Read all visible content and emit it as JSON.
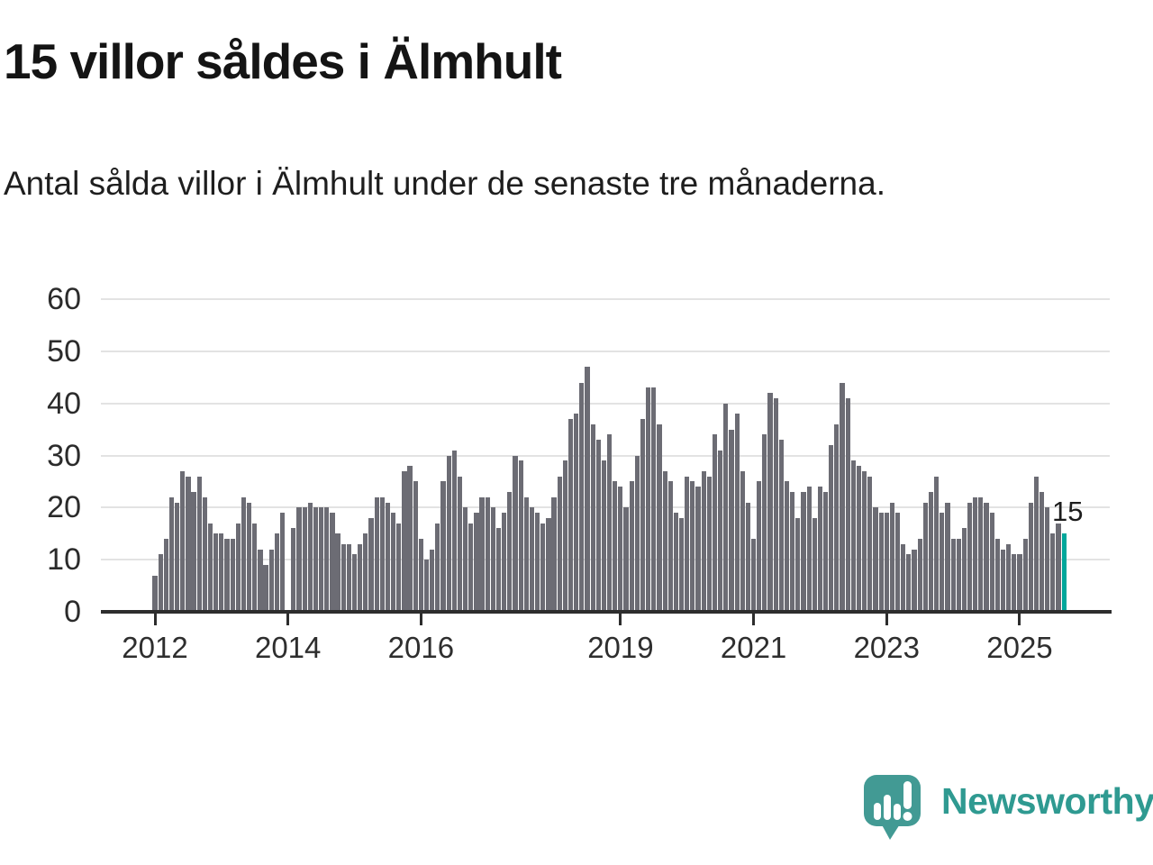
{
  "header": {
    "title": "15 villor såldes i Älmhult",
    "subtitle": "Antal sålda villor i Älmhult under de senaste tre månaderna."
  },
  "chart_data": {
    "type": "bar",
    "title": "15 villor såldes i Älmhult",
    "subtitle": "Antal sålda villor i Älmhult under de senaste tre månaderna.",
    "x_start": "2012-01",
    "x_frequency": "monthly",
    "values": [
      7,
      11,
      14,
      22,
      21,
      27,
      26,
      23,
      26,
      22,
      17,
      15,
      15,
      14,
      14,
      17,
      22,
      21,
      17,
      12,
      9,
      12,
      15,
      19,
      0,
      16,
      20,
      20,
      21,
      20,
      20,
      20,
      19,
      15,
      13,
      13,
      11,
      13,
      15,
      18,
      22,
      22,
      21,
      19,
      17,
      27,
      28,
      25,
      14,
      10,
      12,
      17,
      25,
      30,
      31,
      26,
      20,
      17,
      19,
      22,
      22,
      20,
      16,
      19,
      23,
      30,
      29,
      22,
      20,
      19,
      17,
      18,
      22,
      26,
      29,
      37,
      38,
      44,
      47,
      36,
      33,
      29,
      34,
      25,
      24,
      20,
      25,
      30,
      37,
      43,
      43,
      36,
      27,
      25,
      19,
      18,
      26,
      25,
      24,
      27,
      26,
      34,
      31,
      40,
      35,
      38,
      27,
      21,
      14,
      25,
      34,
      42,
      41,
      33,
      25,
      23,
      18,
      23,
      24,
      18,
      24,
      23,
      32,
      36,
      44,
      41,
      29,
      28,
      27,
      26,
      20,
      19,
      19,
      21,
      19,
      13,
      11,
      12,
      14,
      21,
      23,
      26,
      19,
      21,
      14,
      14,
      16,
      21,
      22,
      22,
      21,
      19,
      14,
      12,
      13,
      11,
      11,
      14,
      21,
      26,
      23,
      20,
      15,
      17,
      15
    ],
    "ylim": [
      0,
      60
    ],
    "yticks": [
      0,
      10,
      20,
      30,
      40,
      50,
      60
    ],
    "xticks": [
      {
        "label": "2012",
        "month": 0
      },
      {
        "label": "2014",
        "month": 24
      },
      {
        "label": "2016",
        "month": 48
      },
      {
        "label": "2019",
        "month": 84
      },
      {
        "label": "2021",
        "month": 108
      },
      {
        "label": "2023",
        "month": 132
      },
      {
        "label": "2025",
        "month": 156
      }
    ],
    "grid": "horizontal",
    "legend": "none",
    "bar_color": "#6c6c74",
    "highlight": {
      "month_index": 164,
      "value": 15,
      "label": "15",
      "color": "#00a79b"
    }
  },
  "footer": {
    "brand": "Newsworthy"
  }
}
